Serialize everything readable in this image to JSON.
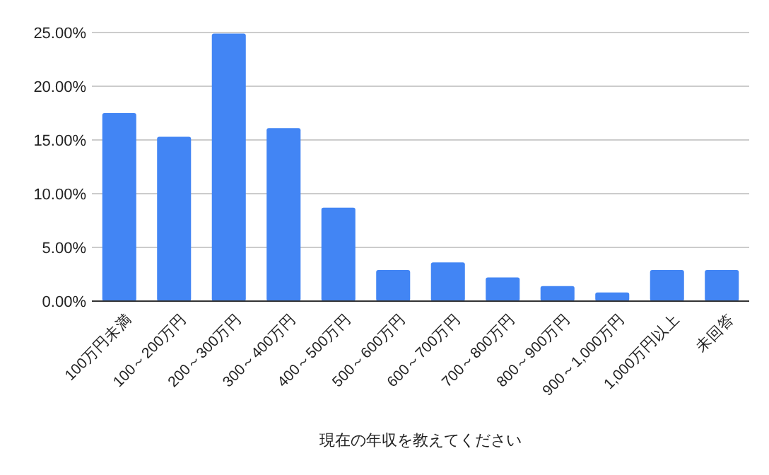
{
  "chart_data": {
    "type": "bar",
    "xlabel": "現在の年収を教えてください",
    "categories": [
      "100万円未満",
      "100～200万円",
      "200～300万円",
      "300～400万円",
      "400～500万円",
      "500～600万円",
      "600～700万円",
      "700～800万円",
      "800～900万円",
      "900～1,000万円",
      "1,000万円以上",
      "未回答"
    ],
    "values": [
      17.5,
      15.3,
      24.9,
      16.1,
      8.7,
      2.9,
      3.6,
      2.2,
      1.4,
      0.8,
      2.9,
      2.9
    ],
    "color": "#4285f4",
    "ylim": [
      0,
      25
    ],
    "yticks": [
      {
        "value": 0,
        "label": "0.00%"
      },
      {
        "value": 5,
        "label": "5.00%"
      },
      {
        "value": 10,
        "label": "10.00%"
      },
      {
        "value": 15,
        "label": "15.00%"
      },
      {
        "value": 20,
        "label": "20.00%"
      },
      {
        "value": 25,
        "label": "25.00%"
      }
    ],
    "grid": "y"
  }
}
